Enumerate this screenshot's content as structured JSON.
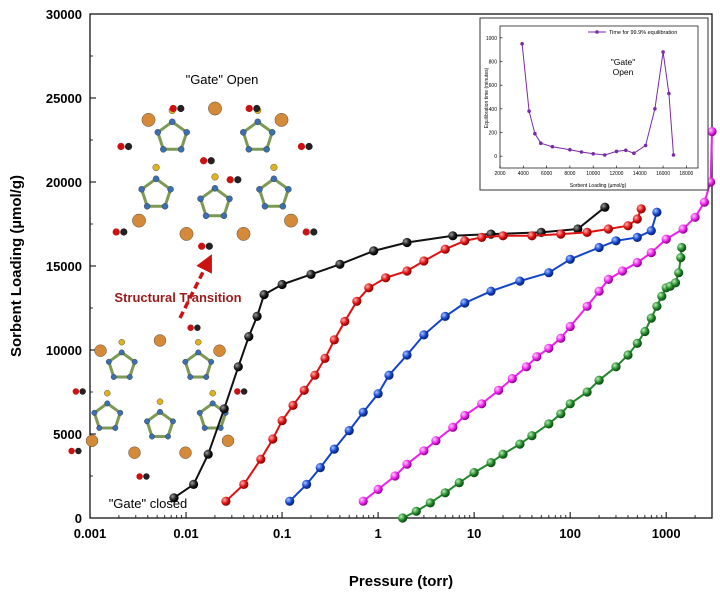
{
  "chart_data": [
    {
      "type": "line",
      "title": "",
      "xlabel": "Pressure (torr)",
      "ylabel": "Sorbent Loading (µmol/g)",
      "xscale": "log",
      "xlim": [
        0.001,
        3000
      ],
      "ylim": [
        0,
        30000
      ],
      "x_tick_labels": [
        "0.001",
        "0.01",
        "0.1",
        "1",
        "10",
        "100",
        "1000"
      ],
      "x_tick_values": [
        0.001,
        0.01,
        0.1,
        1,
        10,
        100,
        1000
      ],
      "y_tick_labels": [
        "0",
        "5000",
        "10000",
        "15000",
        "20000",
        "25000",
        "30000"
      ],
      "y_tick_values": [
        0,
        5000,
        10000,
        15000,
        20000,
        25000,
        30000
      ],
      "grid": false,
      "legend": "none",
      "series": [
        {
          "color": "#111111",
          "points": [
            [
              0.0075,
              1200
            ],
            [
              0.012,
              2000
            ],
            [
              0.017,
              3800
            ],
            [
              0.025,
              6500
            ],
            [
              0.035,
              9000
            ],
            [
              0.045,
              10800
            ],
            [
              0.055,
              12000
            ],
            [
              0.065,
              13300
            ],
            [
              0.1,
              13900
            ],
            [
              0.2,
              14500
            ],
            [
              0.4,
              15100
            ],
            [
              0.9,
              15900
            ],
            [
              2,
              16400
            ],
            [
              6,
              16800
            ],
            [
              15,
              16900
            ],
            [
              50,
              17000
            ],
            [
              120,
              17200
            ],
            [
              230,
              18500
            ]
          ]
        },
        {
          "color": "#dd1111",
          "points": [
            [
              0.026,
              1000
            ],
            [
              0.04,
              2000
            ],
            [
              0.06,
              3500
            ],
            [
              0.08,
              4700
            ],
            [
              0.1,
              5800
            ],
            [
              0.13,
              6700
            ],
            [
              0.17,
              7600
            ],
            [
              0.22,
              8500
            ],
            [
              0.28,
              9500
            ],
            [
              0.35,
              10600
            ],
            [
              0.45,
              11700
            ],
            [
              0.6,
              12900
            ],
            [
              0.8,
              13700
            ],
            [
              1.2,
              14300
            ],
            [
              2,
              14700
            ],
            [
              3,
              15300
            ],
            [
              5,
              16000
            ],
            [
              8,
              16500
            ],
            [
              12,
              16700
            ],
            [
              20,
              16800
            ],
            [
              40,
              16800
            ],
            [
              80,
              16900
            ],
            [
              150,
              17000
            ],
            [
              250,
              17200
            ],
            [
              400,
              17400
            ],
            [
              500,
              17800
            ],
            [
              550,
              18400
            ]
          ]
        },
        {
          "color": "#1144cc",
          "points": [
            [
              0.12,
              1000
            ],
            [
              0.18,
              2000
            ],
            [
              0.25,
              3000
            ],
            [
              0.35,
              4100
            ],
            [
              0.5,
              5200
            ],
            [
              0.7,
              6300
            ],
            [
              1,
              7400
            ],
            [
              1.3,
              8500
            ],
            [
              2,
              9700
            ],
            [
              3,
              10900
            ],
            [
              5,
              12000
            ],
            [
              8,
              12800
            ],
            [
              15,
              13500
            ],
            [
              30,
              14100
            ],
            [
              60,
              14600
            ],
            [
              100,
              15400
            ],
            [
              200,
              16100
            ],
            [
              300,
              16500
            ],
            [
              500,
              16700
            ],
            [
              700,
              17100
            ],
            [
              800,
              18200
            ]
          ]
        },
        {
          "color": "#ee22ee",
          "points": [
            [
              0.7,
              1000
            ],
            [
              1,
              1700
            ],
            [
              1.5,
              2500
            ],
            [
              2,
              3200
            ],
            [
              3,
              4000
            ],
            [
              4,
              4600
            ],
            [
              6,
              5400
            ],
            [
              8,
              6100
            ],
            [
              12,
              6800
            ],
            [
              18,
              7600
            ],
            [
              25,
              8300
            ],
            [
              35,
              9000
            ],
            [
              45,
              9600
            ],
            [
              60,
              10100
            ],
            [
              80,
              10700
            ],
            [
              100,
              11400
            ],
            [
              150,
              12600
            ],
            [
              200,
              13500
            ],
            [
              250,
              14200
            ],
            [
              350,
              14700
            ],
            [
              500,
              15200
            ],
            [
              700,
              15800
            ],
            [
              1000,
              16600
            ],
            [
              1500,
              17200
            ],
            [
              2000,
              17900
            ],
            [
              2500,
              18800
            ],
            [
              2900,
              20000
            ],
            [
              3000,
              23000
            ]
          ]
        },
        {
          "color": "#22882a",
          "points": [
            [
              1.8,
              0
            ],
            [
              2.5,
              400
            ],
            [
              3.5,
              900
            ],
            [
              5,
              1500
            ],
            [
              7,
              2100
            ],
            [
              10,
              2700
            ],
            [
              15,
              3300
            ],
            [
              20,
              3800
            ],
            [
              30,
              4400
            ],
            [
              40,
              4900
            ],
            [
              60,
              5600
            ],
            [
              80,
              6200
            ],
            [
              100,
              6800
            ],
            [
              150,
              7500
            ],
            [
              200,
              8200
            ],
            [
              300,
              9000
            ],
            [
              400,
              9700
            ],
            [
              500,
              10400
            ],
            [
              600,
              11100
            ],
            [
              700,
              11900
            ],
            [
              800,
              12600
            ],
            [
              900,
              13200
            ],
            [
              1000,
              13700
            ],
            [
              1100,
              13800
            ],
            [
              1250,
              14000
            ],
            [
              1350,
              14600
            ],
            [
              1420,
              15500
            ],
            [
              1450,
              16100
            ]
          ]
        }
      ],
      "annotations": [
        "\"Gate\" Open",
        "Structural Transition",
        "\"Gate\" closed"
      ]
    },
    {
      "type": "line",
      "title": "",
      "xlabel": "Sorbent Loading (µmol/g)",
      "ylabel": "Equilibration time (minutes)",
      "xlim": [
        2000,
        19000
      ],
      "ylim": [
        -100,
        1100
      ],
      "x_tick_labels": [
        "2000",
        "4000",
        "6000",
        "8000",
        "10000",
        "12000",
        "14000",
        "16000",
        "18000"
      ],
      "x_tick_values": [
        2000,
        4000,
        6000,
        8000,
        10000,
        12000,
        14000,
        16000,
        18000
      ],
      "y_tick_labels": [
        "0",
        "200",
        "400",
        "600",
        "800",
        "1000"
      ],
      "y_tick_values": [
        0,
        200,
        400,
        600,
        800,
        1000
      ],
      "legend": "top-right",
      "annotations": [
        "\"Gate\"",
        "Open"
      ],
      "series": [
        {
          "name": "Time for 99.9% equilibration",
          "color": "#7a2aa8",
          "points": [
            [
              3900,
              950
            ],
            [
              4500,
              380
            ],
            [
              5000,
              190
            ],
            [
              5500,
              110
            ],
            [
              6500,
              80
            ],
            [
              8000,
              55
            ],
            [
              9000,
              35
            ],
            [
              10000,
              20
            ],
            [
              11000,
              10
            ],
            [
              12000,
              40
            ],
            [
              12800,
              50
            ],
            [
              13500,
              25
            ],
            [
              14500,
              90
            ],
            [
              15300,
              400
            ],
            [
              16000,
              880
            ],
            [
              16500,
              530
            ],
            [
              16900,
              10
            ]
          ]
        }
      ]
    }
  ]
}
